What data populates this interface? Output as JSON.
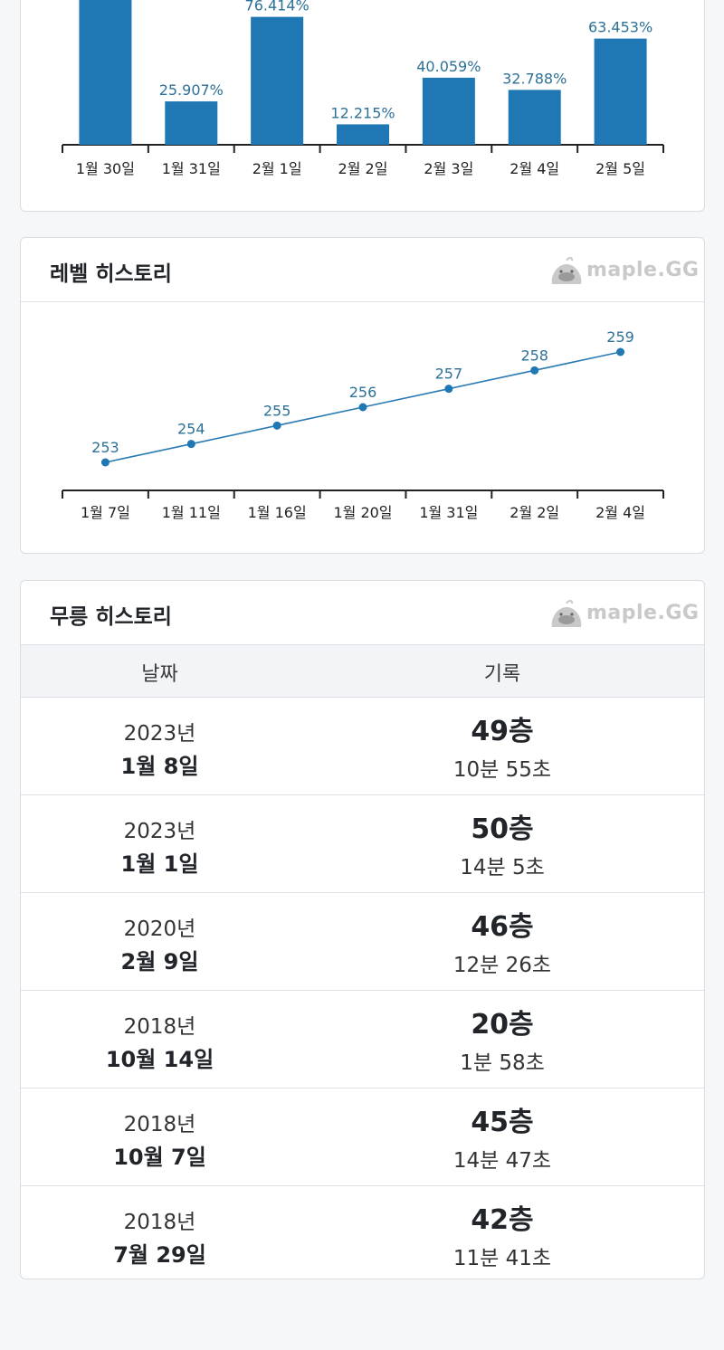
{
  "exp_chart": {
    "chart_data": {
      "type": "bar",
      "categories": [
        "1월 30일",
        "1월 31일",
        "2월 1일",
        "2월 2일",
        "2월 3일",
        "2월 4일",
        "2월 5일"
      ],
      "values": [
        100,
        25.907,
        76.414,
        12.215,
        40.059,
        32.788,
        63.453
      ],
      "labels": [
        "",
        "25.907%",
        "76.414%",
        "12.215%",
        "40.059%",
        "32.788%",
        "63.453%"
      ],
      "color": "#1f77b4"
    }
  },
  "level_history": {
    "title": "레벨 히스토리",
    "brand": "maple.GG",
    "chart_data": {
      "type": "line",
      "categories": [
        "1월 7일",
        "1월 11일",
        "1월 16일",
        "1월 20일",
        "1월 31일",
        "2월 2일",
        "2월 4일"
      ],
      "values": [
        253,
        254,
        255,
        256,
        257,
        258,
        259
      ],
      "color": "#1f77b4"
    }
  },
  "mureung_history": {
    "title": "무릉 히스토리",
    "brand": "maple.GG",
    "columns": [
      "날짜",
      "기록"
    ],
    "rows": [
      {
        "year": "2023년",
        "date": "1월 8일",
        "floor": "49층",
        "time": "10분 55초"
      },
      {
        "year": "2023년",
        "date": "1월 1일",
        "floor": "50층",
        "time": "14분 5초"
      },
      {
        "year": "2020년",
        "date": "2월 9일",
        "floor": "46층",
        "time": "12분 26초"
      },
      {
        "year": "2018년",
        "date": "10월 14일",
        "floor": "20층",
        "time": "1분 58초"
      },
      {
        "year": "2018년",
        "date": "10월 7일",
        "floor": "45층",
        "time": "14분 47초"
      },
      {
        "year": "2018년",
        "date": "7월 29일",
        "floor": "42층",
        "time": "11분 41초"
      }
    ]
  }
}
